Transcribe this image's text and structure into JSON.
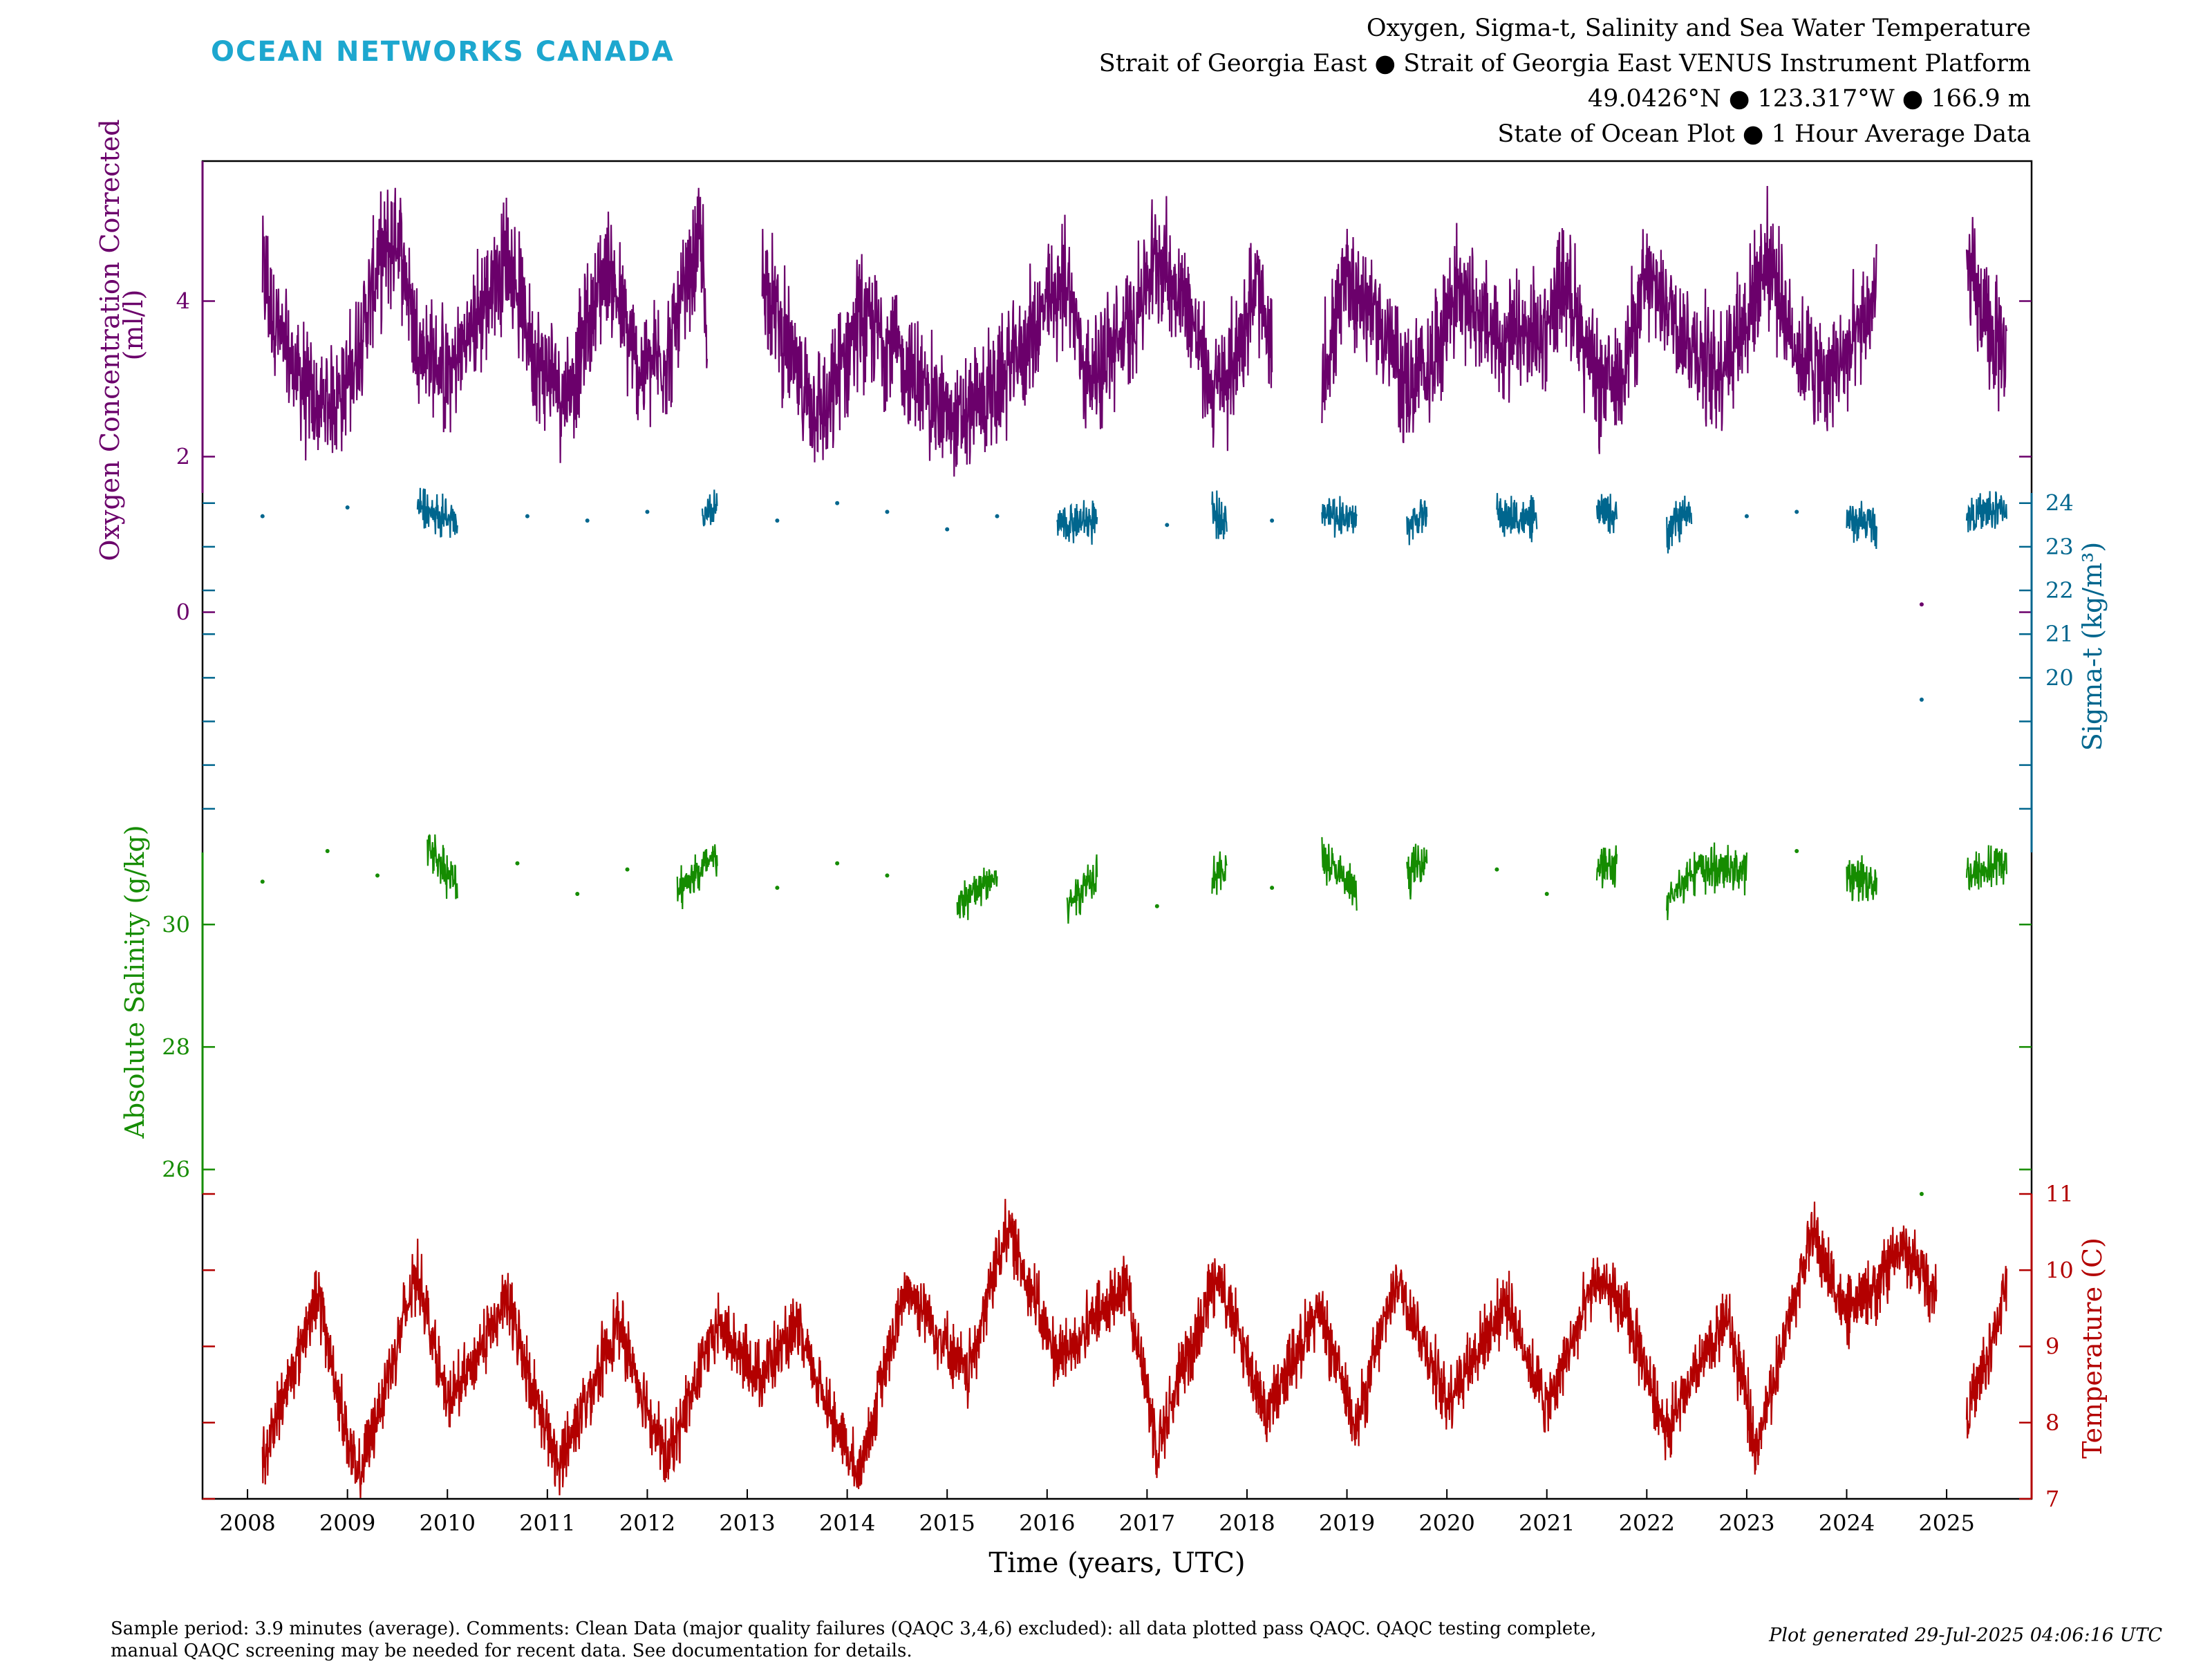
{
  "header": {
    "logo_text": "OCEAN NETWORKS CANADA",
    "title_lines": [
      "Oxygen, Sigma-t, Salinity and Sea Water Temperature",
      "Strait of Georgia East ● Strait of Georgia East VENUS Instrument Platform",
      "49.0426°N ● 123.317°W ● 166.9 m",
      "State of Ocean Plot ● 1 Hour Average Data"
    ]
  },
  "footer": {
    "comment_line1": "Sample period: 3.9 minutes (average). Comments: Clean Data (major quality failures (QAQC 3,4,6) excluded): all data plotted pass QAQC. QAQC testing complete,",
    "comment_line2": "manual QAQC screening may be needed for recent data. See documentation for details.",
    "generated": "Plot generated 29-Jul-2025 04:06:16 UTC"
  },
  "chart_data": {
    "type": "line",
    "xlabel": "Time (years, UTC)",
    "x_ticks": [
      "2008",
      "2009",
      "2010",
      "2011",
      "2012",
      "2013",
      "2014",
      "2015",
      "2016",
      "2017",
      "2018",
      "2019",
      "2020",
      "2021",
      "2022",
      "2023",
      "2024",
      "2025"
    ],
    "xlim": [
      2007.55,
      2025.85
    ],
    "grid": false,
    "series": [
      {
        "name": "Oxygen Concentration Corrected",
        "ylabel": "Oxygen Concentration Corrected (ml/l)",
        "axis": "left",
        "color": "#6b006b",
        "yticks": [
          "0",
          "2",
          "4"
        ],
        "ylim": [
          -0.6,
          5.8
        ],
        "baseline": [
          [
            2008.15,
            4.4
          ],
          [
            2008.35,
            3.4
          ],
          [
            2008.7,
            2.6
          ],
          [
            2009.0,
            2.9
          ],
          [
            2009.3,
            4.4
          ],
          [
            2009.5,
            4.9
          ],
          [
            2009.7,
            3.5
          ],
          [
            2010.0,
            3.0
          ],
          [
            2010.3,
            3.8
          ],
          [
            2010.6,
            4.6
          ],
          [
            2010.9,
            3.2
          ],
          [
            2011.2,
            2.8
          ],
          [
            2011.6,
            4.5
          ],
          [
            2011.9,
            3.1
          ],
          [
            2012.2,
            3.3
          ],
          [
            2012.55,
            4.8
          ],
          [
            2012.6,
            3.0
          ],
          [
            2013.15,
            4.4
          ],
          [
            2013.5,
            3.0
          ],
          [
            2013.8,
            2.5
          ],
          [
            2014.1,
            3.8
          ],
          [
            2014.4,
            3.5
          ],
          [
            2014.8,
            2.8
          ],
          [
            2015.1,
            2.4
          ],
          [
            2015.5,
            2.9
          ],
          [
            2015.9,
            3.7
          ],
          [
            2016.2,
            4.3
          ],
          [
            2016.4,
            3.0
          ],
          [
            2016.8,
            3.6
          ],
          [
            2017.1,
            4.6
          ],
          [
            2017.4,
            4.0
          ],
          [
            2017.65,
            2.8
          ],
          [
            2017.8,
            3.0
          ],
          [
            2018.1,
            4.2
          ],
          [
            2018.25,
            3.2
          ],
          [
            2018.75,
            3.0
          ],
          [
            2019.0,
            4.3
          ],
          [
            2019.3,
            3.8
          ],
          [
            2019.6,
            2.9
          ],
          [
            2019.8,
            3.1
          ],
          [
            2020.1,
            4.2
          ],
          [
            2020.5,
            3.5
          ],
          [
            2020.9,
            3.5
          ],
          [
            2021.2,
            4.3
          ],
          [
            2021.5,
            2.9
          ],
          [
            2021.7,
            3.0
          ],
          [
            2022.0,
            4.2
          ],
          [
            2022.2,
            4.0
          ],
          [
            2022.4,
            3.5
          ],
          [
            2022.7,
            3.1
          ],
          [
            2023.0,
            3.8
          ],
          [
            2023.2,
            4.6
          ],
          [
            2023.5,
            3.4
          ],
          [
            2023.8,
            3.0
          ],
          [
            2024.1,
            3.5
          ],
          [
            2024.3,
            4.1
          ],
          [
            2024.75,
            0.1
          ],
          [
            2025.2,
            4.5
          ],
          [
            2025.4,
            3.6
          ],
          [
            2025.6,
            3.3
          ]
        ],
        "range": 1.0
      },
      {
        "name": "Sigma-t",
        "ylabel": "Sigma-t (kg/m³)",
        "axis": "right",
        "color": "#00668e",
        "yticks": [
          "20",
          "21",
          "22",
          "23",
          "24"
        ],
        "ylim": [
          16.0,
          25.5
        ],
        "baseline": [
          [
            2008.15,
            23.7
          ],
          [
            2009.0,
            23.9
          ],
          [
            2009.7,
            24.0
          ],
          [
            2010.1,
            23.5
          ],
          [
            2010.8,
            23.7
          ],
          [
            2011.4,
            23.6
          ],
          [
            2012.0,
            23.8
          ],
          [
            2012.55,
            23.6
          ],
          [
            2012.7,
            23.9
          ],
          [
            2013.3,
            23.6
          ],
          [
            2013.9,
            24.0
          ],
          [
            2014.4,
            23.8
          ],
          [
            2015.0,
            23.4
          ],
          [
            2015.5,
            23.7
          ],
          [
            2016.1,
            23.5
          ],
          [
            2016.5,
            23.6
          ],
          [
            2017.2,
            23.5
          ],
          [
            2017.65,
            23.7
          ],
          [
            2017.8,
            23.7
          ],
          [
            2018.25,
            23.6
          ],
          [
            2018.75,
            23.8
          ],
          [
            2019.1,
            23.6
          ],
          [
            2019.6,
            23.5
          ],
          [
            2019.8,
            23.8
          ],
          [
            2020.5,
            23.7
          ],
          [
            2020.9,
            23.6
          ],
          [
            2021.5,
            23.8
          ],
          [
            2021.7,
            23.7
          ],
          [
            2022.2,
            23.4
          ],
          [
            2022.45,
            23.8
          ],
          [
            2023.0,
            23.7
          ],
          [
            2023.5,
            23.8
          ],
          [
            2024.0,
            23.6
          ],
          [
            2024.3,
            23.5
          ],
          [
            2024.75,
            19.5
          ],
          [
            2025.2,
            23.7
          ],
          [
            2025.6,
            23.9
          ]
        ],
        "range": 0.6
      },
      {
        "name": "Absolute Salinity",
        "ylabel": "Absolute Salinity (g/kg)",
        "axis": "left",
        "color": "#158c00",
        "yticks": [
          "26",
          "28",
          "30"
        ],
        "ylim": [
          25.6,
          32.6
        ],
        "baseline": [
          [
            2008.15,
            30.7
          ],
          [
            2008.8,
            31.2
          ],
          [
            2009.3,
            30.8
          ],
          [
            2009.8,
            31.3
          ],
          [
            2010.1,
            30.6
          ],
          [
            2010.7,
            31.0
          ],
          [
            2011.3,
            30.5
          ],
          [
            2011.8,
            30.9
          ],
          [
            2012.3,
            30.6
          ],
          [
            2012.55,
            30.9
          ],
          [
            2012.7,
            31.1
          ],
          [
            2013.3,
            30.6
          ],
          [
            2013.9,
            31.0
          ],
          [
            2014.4,
            30.8
          ],
          [
            2015.1,
            30.3
          ],
          [
            2015.5,
            30.8
          ],
          [
            2016.2,
            30.3
          ],
          [
            2016.5,
            30.9
          ],
          [
            2017.1,
            30.3
          ],
          [
            2017.65,
            30.8
          ],
          [
            2017.8,
            30.9
          ],
          [
            2018.25,
            30.6
          ],
          [
            2018.75,
            31.1
          ],
          [
            2019.1,
            30.5
          ],
          [
            2019.6,
            30.8
          ],
          [
            2019.8,
            31.1
          ],
          [
            2020.5,
            30.9
          ],
          [
            2021.0,
            30.5
          ],
          [
            2021.5,
            31.0
          ],
          [
            2021.7,
            30.9
          ],
          [
            2022.2,
            30.3
          ],
          [
            2022.45,
            30.9
          ],
          [
            2023.0,
            30.9
          ],
          [
            2023.5,
            31.2
          ],
          [
            2024.0,
            30.8
          ],
          [
            2024.3,
            30.7
          ],
          [
            2024.75,
            25.6
          ],
          [
            2025.2,
            30.8
          ],
          [
            2025.6,
            31.0
          ]
        ],
        "range": 0.45
      },
      {
        "name": "Temperature",
        "ylabel": "Temperature (C)",
        "axis": "right",
        "color": "#b30000",
        "yticks": [
          "7",
          "8",
          "9",
          "10",
          "11"
        ],
        "ylim": [
          7.0,
          11.0
        ],
        "baseline": [
          [
            2008.15,
            7.5
          ],
          [
            2008.7,
            9.7
          ],
          [
            2009.1,
            7.2
          ],
          [
            2009.7,
            10.0
          ],
          [
            2010.0,
            8.2
          ],
          [
            2010.6,
            9.6
          ],
          [
            2011.1,
            7.4
          ],
          [
            2011.7,
            9.3
          ],
          [
            2012.2,
            7.5
          ],
          [
            2012.7,
            9.3
          ],
          [
            2013.1,
            8.6
          ],
          [
            2013.5,
            9.2
          ],
          [
            2014.1,
            7.3
          ],
          [
            2014.6,
            9.8
          ],
          [
            2015.2,
            8.6
          ],
          [
            2015.6,
            10.6
          ],
          [
            2016.1,
            8.8
          ],
          [
            2016.8,
            9.8
          ],
          [
            2017.1,
            7.7
          ],
          [
            2017.7,
            10.0
          ],
          [
            2018.2,
            8.1
          ],
          [
            2018.7,
            9.5
          ],
          [
            2019.1,
            8.0
          ],
          [
            2019.5,
            9.9
          ],
          [
            2020.0,
            8.3
          ],
          [
            2020.6,
            9.6
          ],
          [
            2021.0,
            8.2
          ],
          [
            2021.5,
            9.9
          ],
          [
            2021.8,
            9.4
          ],
          [
            2022.2,
            7.9
          ],
          [
            2022.8,
            9.4
          ],
          [
            2023.1,
            7.7
          ],
          [
            2023.65,
            10.5
          ],
          [
            2024.0,
            9.4
          ],
          [
            2024.3,
            9.8
          ],
          [
            2024.55,
            10.3
          ],
          [
            2024.9,
            9.7
          ]
        ],
        "baseline2": [
          [
            2025.2,
            8.1
          ],
          [
            2025.45,
            9.0
          ],
          [
            2025.6,
            9.9
          ]
        ],
        "range": 0.55
      }
    ]
  }
}
